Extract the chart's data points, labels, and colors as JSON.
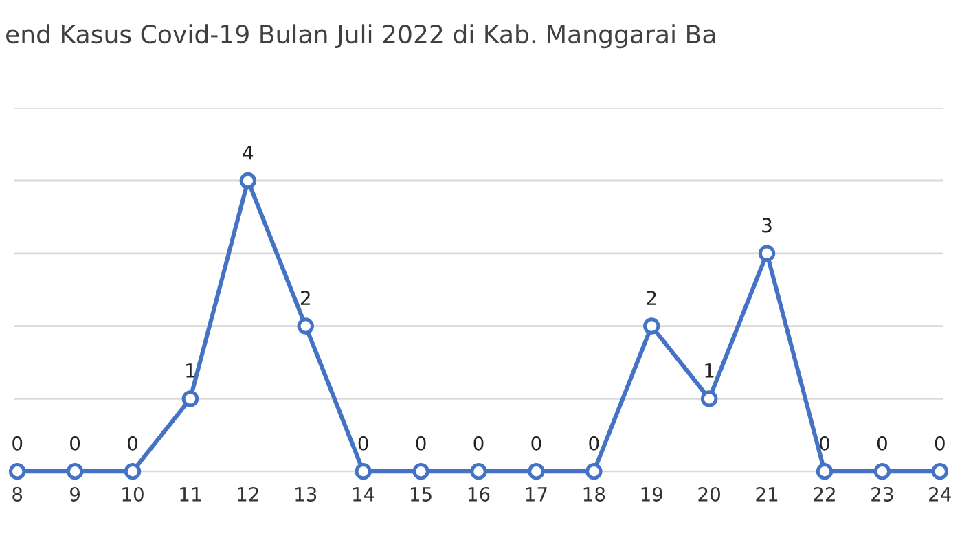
{
  "chart_data": {
    "type": "line",
    "title": "end Kasus Covid-19 Bulan Juli 2022 di Kab. Manggarai Ba",
    "categories": [
      "8",
      "9",
      "10",
      "11",
      "12",
      "13",
      "14",
      "15",
      "16",
      "17",
      "18",
      "19",
      "20",
      "21",
      "22",
      "23",
      "24"
    ],
    "series": [
      {
        "color": "#4472c4",
        "values": [
          0,
          0,
          0,
          1,
          4,
          2,
          0,
          0,
          0,
          0,
          0,
          2,
          1,
          3,
          0,
          0,
          0
        ]
      }
    ],
    "ylim": [
      0,
      5
    ],
    "yticks": [
      {
        "value": 0,
        "label": null
      },
      {
        "value": 1,
        "label": null
      },
      {
        "value": 2,
        "label": null
      },
      {
        "value": 3,
        "label": null
      },
      {
        "value": 4,
        "label": null
      },
      {
        "value": 5,
        "label": null
      }
    ],
    "tick_labels": "x",
    "grid": "y",
    "marker": "circle",
    "line_style": "solid",
    "data_labels": true
  }
}
